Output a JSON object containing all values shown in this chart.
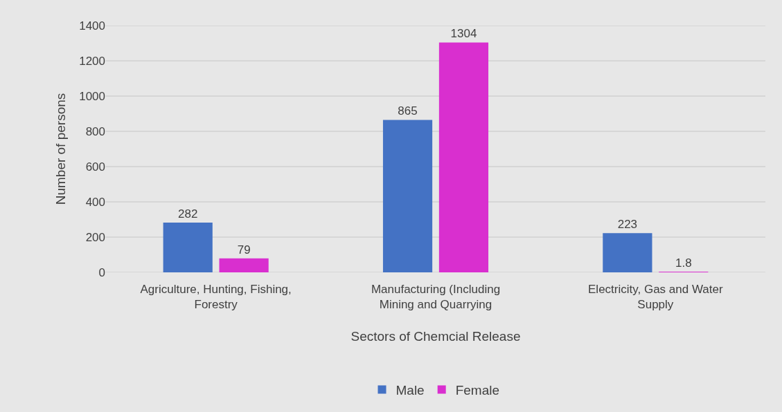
{
  "chart_data": {
    "type": "bar",
    "xlabel": "Sectors of Chemcial Release",
    "ylabel": "Number of persons",
    "categories": [
      "Agriculture, Hunting, Fishing, Forestry",
      "Manufacturing (Including Mining and Quarrying",
      "Electricity, Gas and Water Supply"
    ],
    "series": [
      {
        "name": "Male",
        "color": "#4472c4",
        "values": [
          282,
          865,
          223
        ]
      },
      {
        "name": "Female",
        "color": "#d92fcf",
        "values": [
          79,
          1304,
          1.8
        ]
      }
    ],
    "ylim": [
      0,
      1400
    ],
    "yticks": [
      0,
      200,
      400,
      600,
      800,
      1000,
      1200,
      1400
    ],
    "grid": "y",
    "legend": "bottom",
    "data_labels": true
  }
}
